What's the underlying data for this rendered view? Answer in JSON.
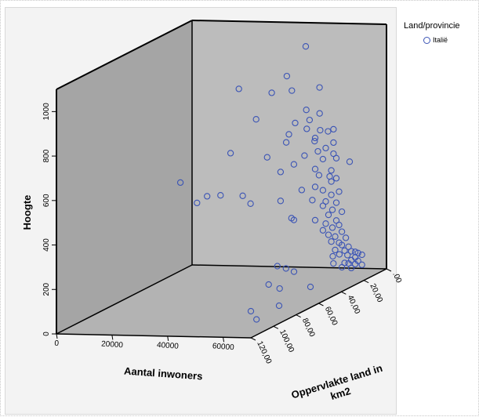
{
  "legend": {
    "title": "Land/provincie",
    "items": [
      {
        "label": "Italië",
        "color": "#3b54b5"
      }
    ]
  },
  "colors": {
    "point": "#3b54b5",
    "back_wall": "#a5a5a5",
    "side_wall": "#bcbcbc",
    "floor": "#b3b3b3"
  },
  "chart_data": {
    "type": "scatter",
    "subtype": "3d",
    "title": "",
    "xlabel": "Aantal inwoners",
    "ylabel": "Oppervlakte land in km2",
    "zlabel": "Hoogte",
    "xlim": [
      0,
      70000
    ],
    "ylim": [
      0,
      120
    ],
    "zlim": [
      0,
      1100
    ],
    "x_ticks": [
      "0",
      "20000",
      "40000",
      "60000"
    ],
    "y_ticks": [
      ".00",
      "20,00",
      "40,00",
      "60,00",
      "80,00",
      "100,00",
      "120,00"
    ],
    "z_ticks": [
      "0",
      "200",
      "400",
      "600",
      "800",
      "1000"
    ],
    "grid": false,
    "legend_position": "top-right",
    "series": [
      {
        "name": "Italië",
        "points": [
          [
            45000,
            10,
            1020
          ],
          [
            25000,
            20,
            850
          ],
          [
            39000,
            12,
            890
          ],
          [
            52000,
            15,
            850
          ],
          [
            36000,
            18,
            830
          ],
          [
            40000,
            10,
            820
          ],
          [
            32000,
            22,
            720
          ],
          [
            46000,
            12,
            740
          ],
          [
            50000,
            10,
            720
          ],
          [
            48000,
            14,
            700
          ],
          [
            42000,
            12,
            680
          ],
          [
            47000,
            14,
            660
          ],
          [
            51000,
            12,
            650
          ],
          [
            55000,
            10,
            650
          ],
          [
            53000,
            10,
            640
          ],
          [
            43000,
            20,
            650
          ],
          [
            50000,
            14,
            620
          ],
          [
            40000,
            15,
            600
          ],
          [
            49000,
            12,
            600
          ],
          [
            55000,
            10,
            590
          ],
          [
            53000,
            12,
            570
          ],
          [
            51000,
            14,
            560
          ],
          [
            36000,
            22,
            550
          ],
          [
            47000,
            16,
            545
          ],
          [
            55000,
            10,
            540
          ],
          [
            52000,
            12,
            520
          ],
          [
            56000,
            10,
            520
          ],
          [
            60000,
            8,
            500
          ],
          [
            44000,
            18,
            510
          ],
          [
            40000,
            20,
            480
          ],
          [
            50000,
            14,
            480
          ],
          [
            55000,
            12,
            470
          ],
          [
            51000,
            13,
            450
          ],
          [
            54000,
            11,
            440
          ],
          [
            56000,
            10,
            430
          ],
          [
            55000,
            12,
            420
          ],
          [
            50000,
            14,
            400
          ],
          [
            46000,
            16,
            390
          ],
          [
            52000,
            12,
            380
          ],
          [
            57000,
            10,
            370
          ],
          [
            55000,
            12,
            360
          ],
          [
            40000,
            20,
            350
          ],
          [
            49000,
            14,
            340
          ],
          [
            53000,
            12,
            330
          ],
          [
            56000,
            10,
            320
          ],
          [
            52000,
            12,
            310
          ],
          [
            55000,
            11,
            290
          ],
          [
            58000,
            10,
            280
          ],
          [
            54000,
            12,
            270
          ],
          [
            44000,
            18,
            260
          ],
          [
            50000,
            14,
            250
          ],
          [
            56000,
            10,
            240
          ],
          [
            53000,
            12,
            230
          ],
          [
            57000,
            10,
            220
          ],
          [
            55000,
            11,
            210
          ],
          [
            52000,
            12,
            200
          ],
          [
            58000,
            10,
            190
          ],
          [
            54000,
            12,
            180
          ],
          [
            56000,
            11,
            170
          ],
          [
            59000,
            9,
            160
          ],
          [
            55000,
            12,
            150
          ],
          [
            57000,
            10,
            140
          ],
          [
            58000,
            10,
            130
          ],
          [
            60000,
            9,
            120
          ],
          [
            56000,
            11,
            110
          ],
          [
            59000,
            10,
            105
          ],
          [
            61000,
            9,
            100
          ],
          [
            62000,
            8,
            95
          ],
          [
            63000,
            8,
            90
          ],
          [
            60000,
            10,
            85
          ],
          [
            64000,
            7,
            80
          ],
          [
            62000,
            8,
            70
          ],
          [
            61000,
            9,
            60
          ],
          [
            63000,
            8,
            55
          ],
          [
            59000,
            10,
            50
          ],
          [
            60000,
            9,
            45
          ],
          [
            62000,
            8,
            40
          ],
          [
            64000,
            7,
            35
          ],
          [
            58000,
            10,
            30
          ],
          [
            61000,
            9,
            25
          ],
          [
            8000,
            30,
            450
          ],
          [
            16000,
            26,
            380
          ],
          [
            20000,
            24,
            380
          ],
          [
            14000,
            30,
            360
          ],
          [
            28000,
            24,
            380
          ],
          [
            30000,
            22,
            340
          ],
          [
            22000,
            20,
            560
          ],
          [
            48000,
            30,
            300
          ],
          [
            47000,
            40,
            110
          ],
          [
            52000,
            60,
            80
          ],
          [
            60000,
            70,
            90
          ],
          [
            55000,
            45,
            100
          ],
          [
            65000,
            55,
            60
          ],
          [
            70000,
            95,
            80
          ],
          [
            70000,
            120,
            120
          ],
          [
            70000,
            115,
            70
          ],
          [
            62000,
            22,
            120
          ],
          [
            58000,
            18,
            100
          ],
          [
            57000,
            15,
            60
          ],
          [
            44000,
            25,
            60
          ]
        ]
      }
    ]
  }
}
